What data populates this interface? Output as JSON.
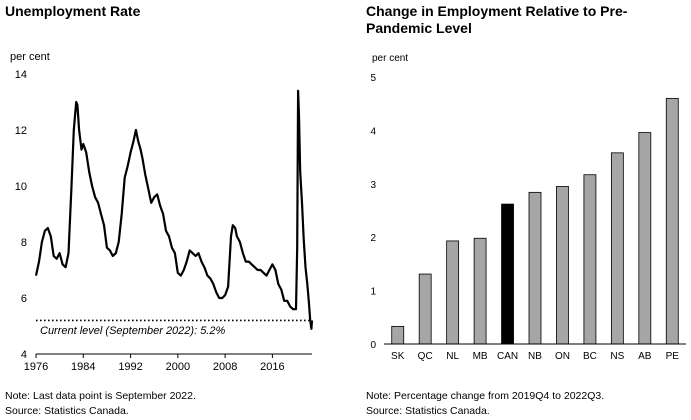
{
  "chart_data": [
    {
      "type": "line",
      "title": "Unemployment Rate",
      "ylabel": "per cent",
      "xlabel": "",
      "ylim": [
        4,
        14
      ],
      "xlim": [
        1976,
        2022.7
      ],
      "yticks": [
        "4",
        "6",
        "8",
        "10",
        "12",
        "14"
      ],
      "xticks": [
        "1976",
        "1984",
        "1992",
        "2000",
        "2008",
        "2016"
      ],
      "grid": false,
      "series": [
        {
          "color": "#000000",
          "x": [
            1976.0,
            1976.5,
            1977.0,
            1977.5,
            1978.0,
            1978.5,
            1979.0,
            1979.5,
            1980.0,
            1980.5,
            1981.0,
            1981.5,
            1982.0,
            1982.4,
            1982.8,
            1983.0,
            1983.3,
            1983.7,
            1984.0,
            1984.5,
            1985.0,
            1985.5,
            1986.0,
            1986.5,
            1987.0,
            1987.5,
            1988.0,
            1988.5,
            1989.0,
            1989.5,
            1990.0,
            1990.5,
            1991.0,
            1991.5,
            1992.0,
            1992.5,
            1992.9,
            1993.3,
            1993.7,
            1994.0,
            1994.5,
            1995.0,
            1995.5,
            1996.0,
            1996.5,
            1997.0,
            1997.5,
            1998.0,
            1998.5,
            1999.0,
            1999.5,
            2000.0,
            2000.5,
            2001.0,
            2001.5,
            2002.0,
            2002.5,
            2003.0,
            2003.5,
            2004.0,
            2004.5,
            2005.0,
            2005.5,
            2006.0,
            2006.5,
            2007.0,
            2007.5,
            2008.0,
            2008.5,
            2009.0,
            2009.3,
            2009.7,
            2010.0,
            2010.5,
            2011.0,
            2011.5,
            2012.0,
            2012.5,
            2013.0,
            2013.5,
            2014.0,
            2014.5,
            2015.0,
            2015.5,
            2016.0,
            2016.5,
            2017.0,
            2017.5,
            2018.0,
            2018.5,
            2019.0,
            2019.5,
            2020.0,
            2020.2,
            2020.35,
            2020.5,
            2020.7,
            2021.0,
            2021.3,
            2021.6,
            2021.9,
            2022.2,
            2022.4,
            2022.6,
            2022.7
          ],
          "y": [
            6.8,
            7.3,
            8.0,
            8.4,
            8.5,
            8.2,
            7.5,
            7.4,
            7.6,
            7.2,
            7.1,
            7.6,
            10.0,
            12.0,
            13.0,
            12.9,
            12.0,
            11.3,
            11.5,
            11.2,
            10.5,
            10.0,
            9.6,
            9.4,
            9.0,
            8.6,
            7.8,
            7.7,
            7.5,
            7.6,
            8.0,
            9.0,
            10.3,
            10.7,
            11.2,
            11.6,
            12.0,
            11.6,
            11.3,
            11.0,
            10.4,
            9.9,
            9.4,
            9.6,
            9.7,
            9.3,
            9.0,
            8.4,
            8.2,
            7.8,
            7.6,
            6.9,
            6.8,
            7.0,
            7.3,
            7.7,
            7.6,
            7.5,
            7.6,
            7.3,
            7.1,
            6.8,
            6.7,
            6.5,
            6.2,
            6.0,
            6.0,
            6.1,
            6.4,
            8.2,
            8.6,
            8.5,
            8.2,
            8.0,
            7.6,
            7.3,
            7.3,
            7.2,
            7.1,
            7.0,
            7.0,
            6.9,
            6.8,
            7.0,
            7.2,
            7.0,
            6.5,
            6.3,
            5.9,
            5.9,
            5.7,
            5.6,
            5.6,
            7.8,
            13.4,
            12.5,
            10.5,
            9.4,
            8.1,
            7.1,
            6.5,
            5.8,
            5.2,
            4.9,
            5.2
          ]
        }
      ],
      "reference_line": {
        "y": 5.2,
        "style": "dotted",
        "label": "Current level (September 2022): 5.2%"
      },
      "note": "Note: Last data point is September 2022.",
      "source": "Source: Statistics Canada."
    },
    {
      "type": "bar",
      "title": "Change in Employment Relative to Pre-Pandemic Level",
      "ylabel": "per cent",
      "xlabel": "",
      "ylim": [
        0,
        5
      ],
      "yticks": [
        "0",
        "1",
        "2",
        "3",
        "4",
        "5"
      ],
      "grid": false,
      "categories": [
        "SK",
        "QC",
        "NL",
        "MB",
        "CAN",
        "NB",
        "ON",
        "BC",
        "NS",
        "AB",
        "PE"
      ],
      "values": [
        0.33,
        1.31,
        1.93,
        1.98,
        2.62,
        2.84,
        2.95,
        3.17,
        3.58,
        3.96,
        4.6
      ],
      "colors": [
        "#a6a6a6",
        "#a6a6a6",
        "#a6a6a6",
        "#a6a6a6",
        "#000000",
        "#a6a6a6",
        "#a6a6a6",
        "#a6a6a6",
        "#a6a6a6",
        "#a6a6a6",
        "#a6a6a6"
      ],
      "note": "Note: Percentage change from 2019Q4 to 2022Q3.",
      "source": "Source: Statistics Canada."
    }
  ]
}
